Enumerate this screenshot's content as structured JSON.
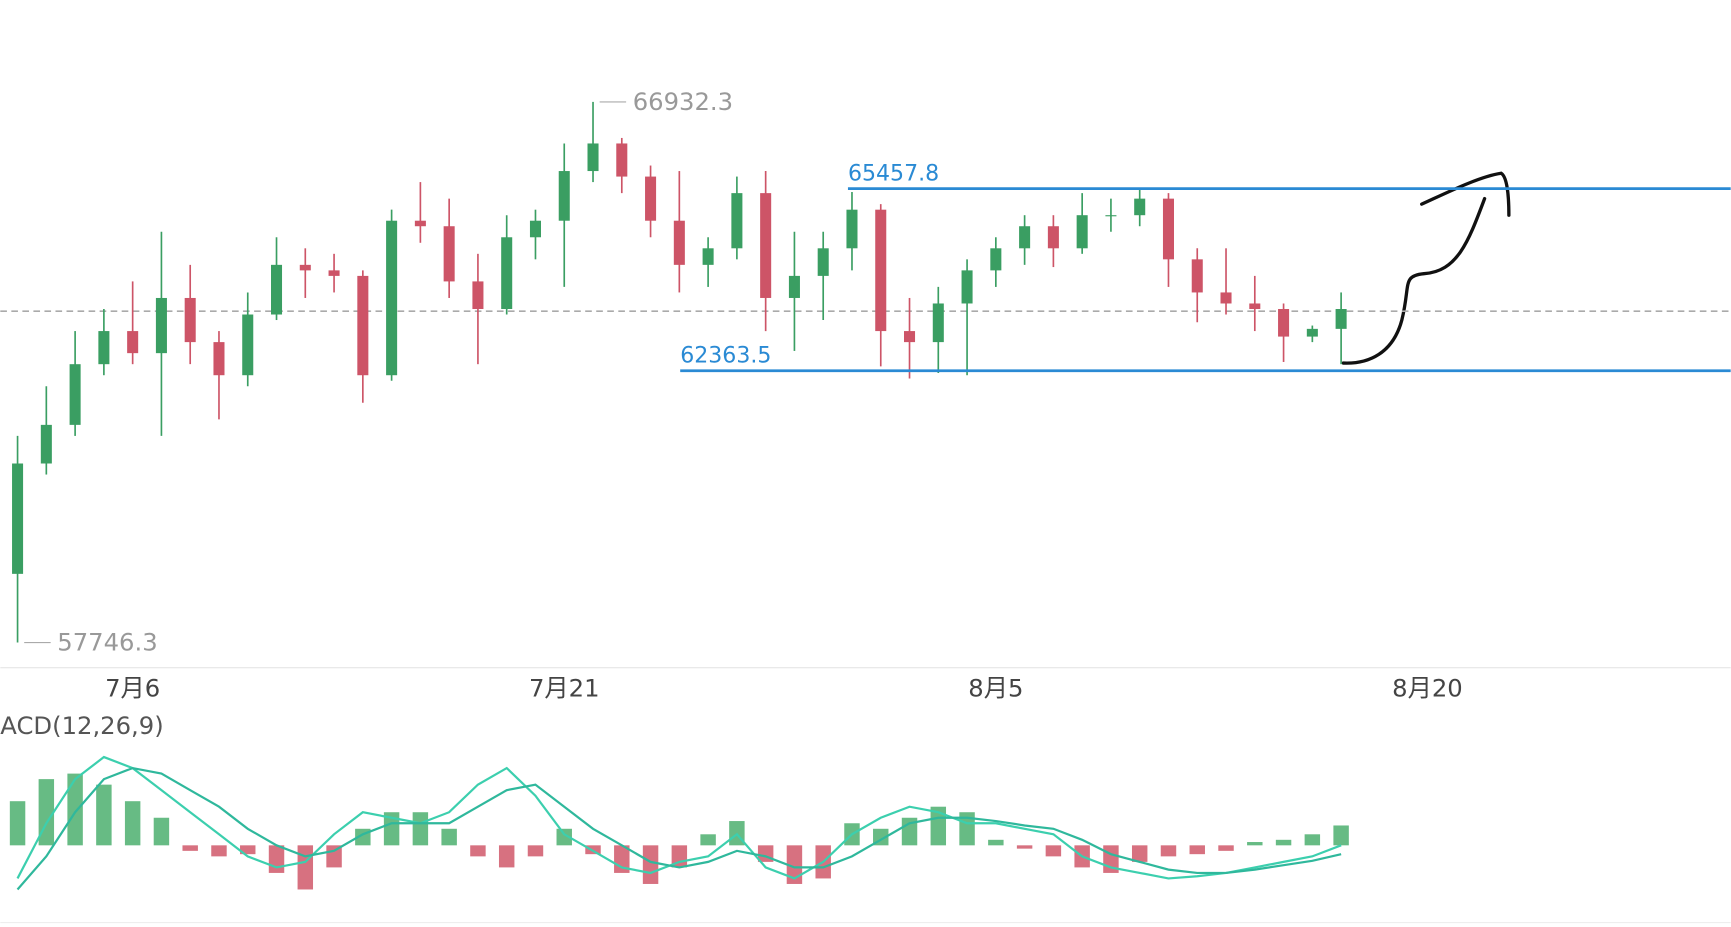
{
  "chart_data": [
    {
      "type": "candlestick",
      "x": [
        -4,
        -3,
        -2,
        -1,
        0,
        1,
        2,
        3,
        4,
        5,
        6,
        7,
        8,
        9,
        10,
        11,
        12,
        13,
        14,
        15,
        16,
        17,
        18,
        19,
        20,
        21,
        22,
        23,
        24,
        25,
        26,
        27,
        28,
        29,
        30,
        31,
        32,
        33,
        34,
        35,
        36,
        37,
        38,
        39,
        40,
        41,
        42
      ],
      "open": [
        58913.5,
        60788.5,
        61444.8,
        62476,
        63038.5,
        62663.5,
        63601,
        62851,
        62288.5,
        63319.8,
        64163.5,
        64069.8,
        63976,
        62288.5,
        64913.5,
        64819.8,
        63882.3,
        63413.5,
        64632.3,
        64913.5,
        65757.3,
        66226,
        65663.5,
        64913.5,
        64163.5,
        64444.8,
        65382.3,
        63601,
        63976,
        64444.8,
        65101,
        63038.5,
        62851,
        63507.3,
        64069.8,
        64444.8,
        64819.8,
        64444.8,
        65007.3,
        65007.3,
        65288.5,
        64257.3,
        63694.8,
        63507.3,
        63413.5,
        62944.8,
        63076
      ],
      "high": [
        61257.3,
        62101,
        63038.5,
        63413.5,
        63882.3,
        64726,
        64163.5,
        63038.5,
        63694.8,
        64632.3,
        64444.8,
        64351,
        64069.8,
        65101,
        65569.8,
        65288.5,
        64351,
        65007.3,
        65101,
        66226,
        66932.3,
        66319.8,
        65851,
        65757.3,
        64632.3,
        65663.5,
        65757.3,
        64726,
        64726,
        65401,
        65194.8,
        63601,
        63788.5,
        64257.3,
        64632.3,
        65007.3,
        65007.3,
        65382.3,
        65288.5,
        65438.5,
        65382.3,
        64444.8,
        64444.8,
        63976,
        63507.3,
        63132.3,
        63694.8
      ],
      "low": [
        57746.3,
        60601,
        61257.3,
        62288.5,
        62476,
        61257.3,
        62476,
        61538.5,
        62101,
        63226,
        63601,
        63694.8,
        61819.8,
        62194.8,
        64538.5,
        63601,
        62476,
        63319.8,
        64257.3,
        63788.5,
        65569.8,
        65382.3,
        64632.3,
        63694.8,
        63788.5,
        64257.3,
        63038.5,
        62701,
        63226,
        64069.8,
        62438.5,
        62232.3,
        62326,
        62288.5,
        63788.5,
        64163.5,
        64126,
        64351,
        64726,
        64819.8,
        63788.5,
        63188.5,
        63319.8,
        63038.5,
        62513.5,
        62851,
        62476
      ],
      "close": [
        60788.5,
        61444.8,
        62476,
        63038.5,
        62663.5,
        63601,
        62851,
        62288.5,
        63319.8,
        64163.5,
        64069.8,
        63976,
        62288.5,
        64913.5,
        64819.8,
        63882.3,
        63413.5,
        64632.3,
        64913.5,
        65757.3,
        66226,
        65663.5,
        64913.5,
        64163.5,
        64444.8,
        65382.3,
        63601,
        63976,
        64444.8,
        65101,
        63038.5,
        62851,
        63507.3,
        64069.8,
        64444.8,
        64819.8,
        64444.8,
        65007.3,
        65007.3,
        65288.5,
        64257.3,
        63694.8,
        63507.3,
        63413.5,
        62944.8,
        63076,
        63413.5
      ],
      "up_color": "#3a9e62",
      "down_color": "#cd5467",
      "xlim": [
        -4.6,
        55.54
      ],
      "xticks": [
        {
          "value": 0,
          "label": "7月6"
        },
        {
          "value": 15,
          "label": "7月21"
        },
        {
          "value": 30,
          "label": "8月5"
        },
        {
          "value": 45,
          "label": "8月20"
        }
      ],
      "ylim": [
        57319.8,
        68663.5
      ],
      "high_label": 66932.3,
      "high_at": 16,
      "low_label": 57746.3,
      "low_at": -4,
      "levels": [
        {
          "value": 65457.8,
          "start": 24.86,
          "color": "#2a8ad4"
        },
        {
          "value": 62363.5,
          "start": 19.03,
          "color": "#2a8ad4"
        }
      ],
      "last_price": 63376
    },
    {
      "type": "macd",
      "title": "ACD(12,26,9)",
      "x": [
        -4,
        -3,
        -2,
        -1,
        0,
        1,
        2,
        3,
        4,
        5,
        6,
        7,
        8,
        9,
        10,
        11,
        12,
        13,
        14,
        15,
        16,
        17,
        18,
        19,
        20,
        21,
        22,
        23,
        24,
        25,
        26,
        27,
        28,
        29,
        30,
        31,
        32,
        33,
        34,
        35,
        36,
        37,
        38,
        39,
        40,
        41,
        42
      ],
      "histogram": [
        40,
        60,
        65,
        55,
        40,
        25,
        -5,
        -10,
        -8,
        -25,
        -40,
        -20,
        15,
        30,
        30,
        15,
        -10,
        -20,
        -10,
        15,
        -8,
        -25,
        -35,
        -20,
        10,
        22,
        -15,
        -35,
        -30,
        20,
        15,
        25,
        35,
        30,
        5,
        -3,
        -10,
        -20,
        -25,
        -15,
        -10,
        -8,
        -5,
        3,
        5,
        10,
        18
      ],
      "dif": [
        -30,
        20,
        60,
        80,
        70,
        50,
        30,
        10,
        -10,
        -20,
        -15,
        10,
        30,
        25,
        20,
        30,
        55,
        70,
        45,
        10,
        -5,
        -20,
        -25,
        -15,
        -10,
        10,
        -20,
        -30,
        -15,
        10,
        25,
        35,
        30,
        20,
        20,
        15,
        10,
        -10,
        -20,
        -25,
        -30,
        -28,
        -25,
        -20,
        -15,
        -10,
        0
      ],
      "dea": [
        -40,
        -10,
        30,
        60,
        70,
        65,
        50,
        35,
        15,
        0,
        -10,
        -5,
        10,
        20,
        20,
        20,
        35,
        50,
        55,
        35,
        15,
        0,
        -15,
        -20,
        -15,
        -5,
        -10,
        -20,
        -20,
        -10,
        5,
        20,
        25,
        25,
        22,
        18,
        15,
        5,
        -8,
        -15,
        -22,
        -25,
        -25,
        -22,
        -18,
        -14,
        -8
      ],
      "up_color": "#4caf6e",
      "down_color": "#d0586a",
      "dif_color": "#3ccfae",
      "dea_color": "#2fb89c",
      "ylim": [
        -80,
        80
      ]
    }
  ]
}
